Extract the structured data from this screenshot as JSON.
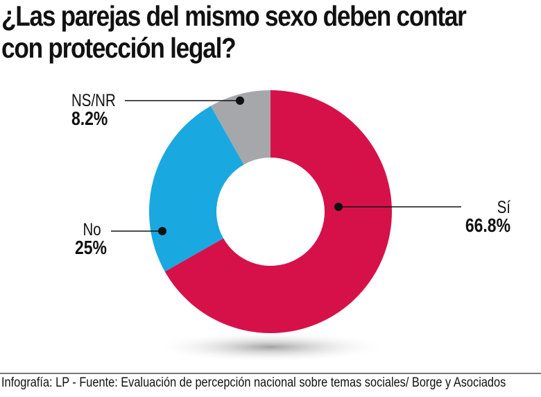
{
  "title_lines": [
    "¿Las parejas del mismo sexo deben contar",
    "con protección legal?"
  ],
  "chart_data": {
    "type": "pie",
    "donut": true,
    "categories": [
      "Sí",
      "No",
      "NS/NR"
    ],
    "values": [
      66.8,
      25,
      8.2
    ],
    "value_labels": [
      "66.8%",
      "25%",
      "8.2%"
    ],
    "colors": [
      "#d6114a",
      "#1aa8e0",
      "#a6a7ab"
    ]
  },
  "footer": "Infografía: LP - Fuente: Evaluación de percepción nacional sobre temas sociales/ Borge y Asociados"
}
